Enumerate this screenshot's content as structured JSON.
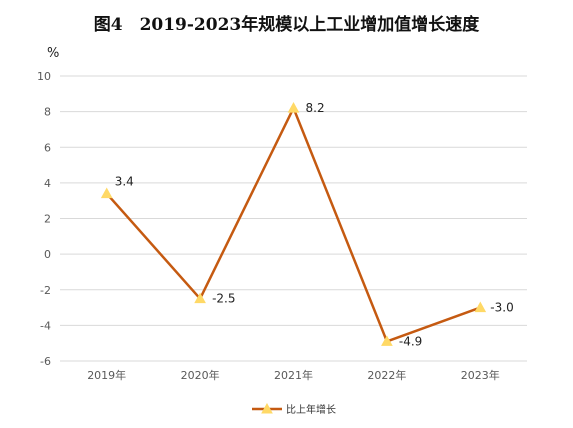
{
  "chart_data": {
    "type": "line",
    "title": "图4　2019-2023年规模以上工业增加值增长速度",
    "ylabel": "%",
    "categories": [
      "2019年",
      "2020年",
      "2021年",
      "2022年",
      "2023年"
    ],
    "series": [
      {
        "name": "比上年增长",
        "values": [
          3.4,
          -2.5,
          8.2,
          -4.9,
          -3.0
        ],
        "labels": [
          "3.4",
          "-2.5",
          "8.2",
          "-4.9",
          "-3.0"
        ],
        "color": "#c55a11",
        "marker_color": "#ffd966"
      }
    ],
    "ylim": [
      -6,
      10
    ],
    "yticks": [
      "10",
      "8",
      "6",
      "4",
      "2",
      "0",
      "-2",
      "-4",
      "-6"
    ],
    "grid": true,
    "legend": "bottom-center"
  }
}
